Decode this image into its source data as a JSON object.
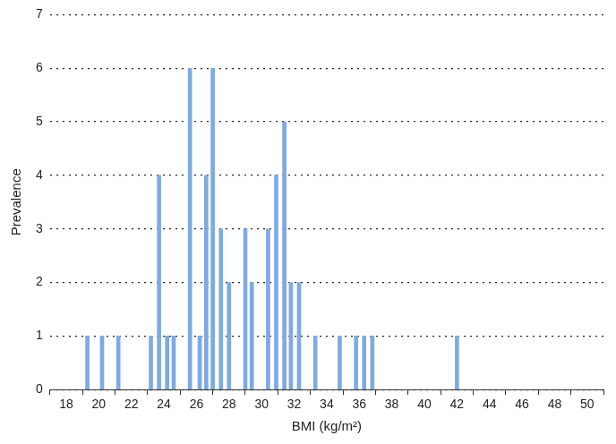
{
  "chart_data": {
    "type": "bar",
    "x_label": "BMI (kg/m²)",
    "y_label": "Prevalence",
    "x": [
      19.3,
      20.2,
      21.2,
      23.2,
      23.7,
      24.2,
      24.6,
      25.6,
      26.2,
      26.6,
      27.0,
      27.5,
      28.0,
      29.0,
      29.4,
      30.4,
      30.9,
      31.4,
      31.8,
      32.3,
      33.3,
      34.8,
      35.8,
      36.3,
      36.8,
      42.0
    ],
    "values": [
      1,
      1,
      1,
      1,
      4,
      1,
      1,
      6,
      1,
      4,
      6,
      3,
      2,
      3,
      2,
      3,
      4,
      5,
      2,
      2,
      1,
      1,
      1,
      1,
      1,
      1
    ],
    "color": "#7fa9e2",
    "xlim": [
      18,
      50
    ],
    "xticks": [
      18,
      20,
      22,
      24,
      26,
      28,
      30,
      32,
      34,
      36,
      38,
      40,
      42,
      44,
      46,
      48,
      50
    ],
    "ylim": [
      0,
      7
    ],
    "yticks": [
      0,
      1,
      2,
      3,
      4,
      5,
      6,
      7
    ],
    "grid": true
  }
}
